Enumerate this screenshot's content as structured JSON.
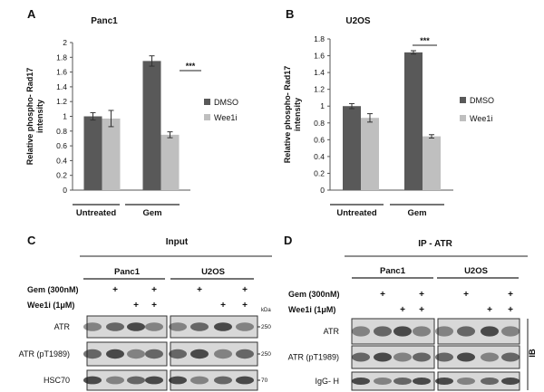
{
  "panels": {
    "A": {
      "letter": "A"
    },
    "B": {
      "letter": "B"
    },
    "C": {
      "letter": "C",
      "header": "Input",
      "cell_lines": [
        "Panc1",
        "U2OS"
      ],
      "treatments": [
        {
          "label": "Gem (300nM)",
          "marks": [
            false,
            true,
            false,
            true,
            false,
            true,
            false,
            true
          ]
        },
        {
          "label": "Wee1i (1μM)",
          "marks": [
            false,
            false,
            true,
            true,
            false,
            false,
            true,
            true
          ]
        }
      ],
      "kda_label": "kDa",
      "blots": [
        {
          "label": "ATR",
          "kda": "250"
        },
        {
          "label": "ATR (pT1989)",
          "kda": "250"
        },
        {
          "label": "HSC70",
          "kda": "70"
        }
      ]
    },
    "D": {
      "letter": "D",
      "header": "IP - ATR",
      "cell_lines": [
        "Panc1",
        "U2OS"
      ],
      "treatments": [
        {
          "label": "Gem (300nM)",
          "marks": [
            false,
            true,
            false,
            true,
            false,
            true,
            false,
            true
          ]
        },
        {
          "label": "Wee1i (1μM)",
          "marks": [
            false,
            false,
            true,
            true,
            false,
            false,
            true,
            true
          ]
        }
      ],
      "blots": [
        {
          "label": "ATR"
        },
        {
          "label": "ATR (pT1989)"
        },
        {
          "label": "IgG- H"
        }
      ],
      "side_label": "IB"
    }
  },
  "plus_sign": "+",
  "chart_data": [
    {
      "type": "bar",
      "title": "Panc1",
      "ylabel": "Relative phospho- Rad17 intensity",
      "categories": [
        "Untreated",
        "Gem"
      ],
      "ylim": [
        0,
        2
      ],
      "yticks": [
        "0",
        "0.2",
        "0.4",
        "0.6",
        "0.8",
        "1",
        "1.2",
        "1.4",
        "1.6",
        "1.8",
        "2"
      ],
      "series": [
        {
          "name": "DMSO",
          "values": [
            1.0,
            1.75
          ],
          "errors": [
            0.05,
            0.07
          ],
          "color": "#595959"
        },
        {
          "name": "Wee1i",
          "values": [
            0.97,
            0.75
          ],
          "errors": [
            0.11,
            0.04
          ],
          "color": "#bfbfbf"
        }
      ],
      "significance": "***",
      "legend": "right"
    },
    {
      "type": "bar",
      "title": "U2OS",
      "ylabel": "Relative phospho- Rad17 intensity",
      "categories": [
        "Untreated",
        "Gem"
      ],
      "ylim": [
        0,
        1.8
      ],
      "yticks": [
        "0",
        "0.2",
        "0.4",
        "0.6",
        "0.8",
        "1",
        "1.2",
        "1.4",
        "1.6",
        "1.8"
      ],
      "series": [
        {
          "name": "DMSO",
          "values": [
            1.0,
            1.64
          ],
          "errors": [
            0.03,
            0.02
          ],
          "color": "#595959"
        },
        {
          "name": "Wee1i",
          "values": [
            0.86,
            0.64
          ],
          "errors": [
            0.05,
            0.02
          ],
          "color": "#bfbfbf"
        }
      ],
      "significance": "***",
      "legend": "right"
    }
  ]
}
